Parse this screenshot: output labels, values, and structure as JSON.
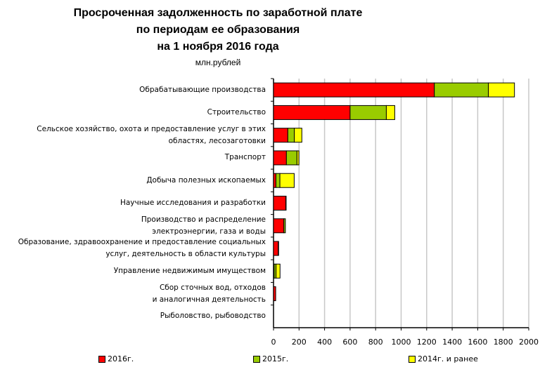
{
  "chart_data": {
    "type": "bar",
    "orientation": "horizontal",
    "stacked": true,
    "title": [
      "Просроченная задолженность по заработной плате",
      "по периодам ее образования",
      "на 1 ноября 2016 года"
    ],
    "subtitle": "млн.рублей",
    "categories": [
      "Обрабатывающие производства",
      "Строительство",
      "Сельское хозяйство, охота и предоставление услуг в этих\nобластях, лесозаготовки",
      "Транспорт",
      "Добыча полезных ископаемых",
      "Научные исследования и разработки",
      "Производство и распределение\nэлектроэнергии, газа и воды",
      "Образование, здравоохранение и предоставление социальных\nуслуг, деятельность в области культуры",
      "Управление недвижимым имуществом",
      "Сбор сточных вод, отходов\nи аналогичная деятельность",
      "Рыболовство, рыбоводство"
    ],
    "series": [
      {
        "name": "2016г.",
        "color": "#ff0000",
        "values": [
          1260,
          600,
          112,
          101,
          19,
          96,
          81,
          37,
          5,
          17,
          0
        ]
      },
      {
        "name": "2015г.",
        "color": "#99cc00",
        "values": [
          424,
          284,
          51,
          83,
          31,
          3,
          12,
          3,
          15,
          0,
          0
        ]
      },
      {
        "name": "2014г. и ранее",
        "color": "#ffff00",
        "values": [
          204,
          66,
          59,
          15,
          112,
          0,
          0,
          0,
          31,
          0,
          0
        ]
      }
    ],
    "xlim": [
      0,
      2000
    ],
    "xticks": [
      "0",
      "200",
      "400",
      "600",
      "800",
      "1000",
      "1200",
      "1400",
      "1600",
      "1800",
      "2000"
    ],
    "grid": true,
    "legend": "bottom"
  }
}
